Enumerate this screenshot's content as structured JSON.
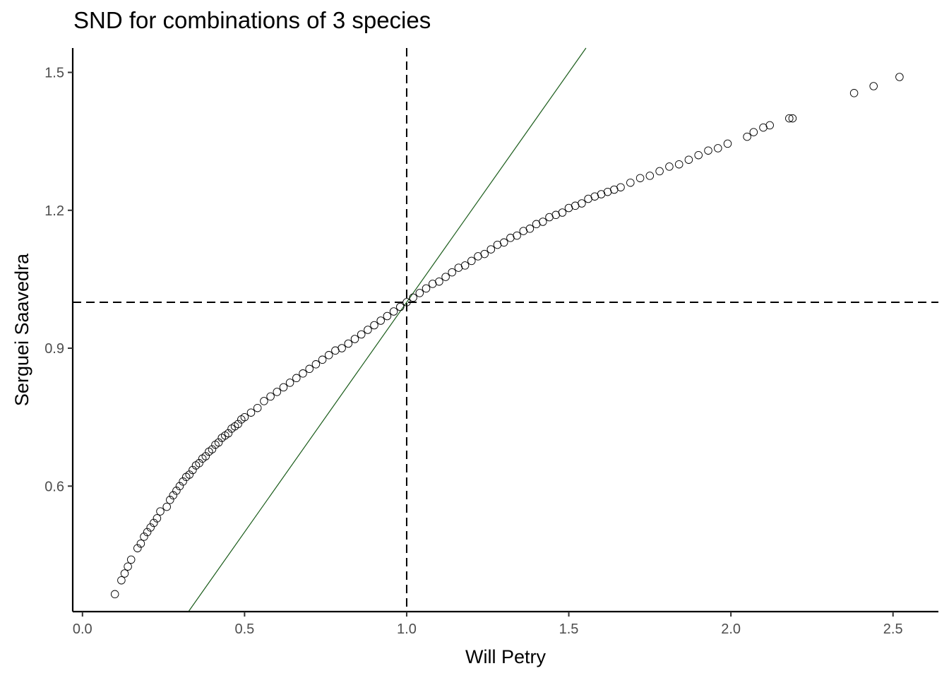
{
  "chart_data": {
    "type": "scatter",
    "title": "SND for combinations of 3 species",
    "xlabel": "Will Petry",
    "ylabel": "Serguei Saavedra",
    "xlim": [
      -0.03,
      2.64
    ],
    "ylim": [
      0.327,
      1.553
    ],
    "xticks": [
      0.0,
      0.5,
      1.0,
      1.5,
      2.0,
      2.5
    ],
    "xtick_labels": [
      "0.0",
      "0.5",
      "1.0",
      "1.5",
      "2.0",
      "2.5"
    ],
    "yticks": [
      0.6,
      0.9,
      1.2,
      1.5
    ],
    "ytick_labels": [
      "0.6",
      "0.9",
      "1.2",
      "1.5"
    ],
    "grid": false,
    "legend": "none",
    "reference_lines": {
      "vertical_x": 1.0,
      "horizontal_y": 1.0,
      "style": "dashed",
      "color": "#000000",
      "identity_line_color": "#1a5c1a",
      "identity_slope": 1,
      "identity_intercept": 0
    },
    "marker": "open-circle",
    "series": [
      {
        "x": [
          0.1,
          0.12,
          0.13,
          0.14,
          0.15,
          0.17,
          0.18,
          0.19,
          0.2,
          0.21,
          0.22,
          0.23,
          0.24,
          0.26,
          0.27,
          0.28,
          0.29,
          0.3,
          0.31,
          0.32,
          0.33,
          0.34,
          0.35,
          0.36,
          0.37,
          0.38,
          0.39,
          0.4,
          0.41,
          0.42,
          0.43,
          0.44,
          0.45,
          0.46,
          0.47,
          0.48,
          0.49,
          0.5,
          0.52,
          0.54,
          0.56,
          0.58,
          0.6,
          0.62,
          0.64,
          0.66,
          0.68,
          0.7,
          0.72,
          0.74,
          0.76,
          0.78,
          0.8,
          0.82,
          0.84,
          0.86,
          0.88,
          0.9,
          0.92,
          0.94,
          0.96,
          0.98,
          1.0,
          1.02,
          1.04,
          1.06,
          1.08,
          1.1,
          1.12,
          1.14,
          1.16,
          1.18,
          1.2,
          1.22,
          1.24,
          1.26,
          1.28,
          1.3,
          1.32,
          1.34,
          1.36,
          1.38,
          1.4,
          1.42,
          1.44,
          1.46,
          1.48,
          1.5,
          1.52,
          1.54,
          1.56,
          1.58,
          1.6,
          1.62,
          1.64,
          1.66,
          1.69,
          1.72,
          1.75,
          1.78,
          1.81,
          1.84,
          1.87,
          1.9,
          1.93,
          1.96,
          1.99,
          2.05,
          2.07,
          2.1,
          2.12,
          2.18,
          2.19,
          2.38,
          2.44,
          2.52
        ],
        "y": [
          0.365,
          0.395,
          0.41,
          0.425,
          0.44,
          0.465,
          0.475,
          0.49,
          0.5,
          0.51,
          0.52,
          0.53,
          0.545,
          0.555,
          0.57,
          0.58,
          0.59,
          0.6,
          0.61,
          0.62,
          0.625,
          0.635,
          0.645,
          0.65,
          0.66,
          0.665,
          0.675,
          0.68,
          0.69,
          0.695,
          0.705,
          0.71,
          0.715,
          0.725,
          0.73,
          0.735,
          0.745,
          0.75,
          0.76,
          0.77,
          0.785,
          0.795,
          0.805,
          0.815,
          0.825,
          0.835,
          0.845,
          0.855,
          0.865,
          0.875,
          0.885,
          0.895,
          0.9,
          0.91,
          0.92,
          0.93,
          0.94,
          0.95,
          0.96,
          0.97,
          0.98,
          0.99,
          1.0,
          1.01,
          1.02,
          1.03,
          1.04,
          1.045,
          1.055,
          1.065,
          1.075,
          1.08,
          1.09,
          1.1,
          1.105,
          1.115,
          1.125,
          1.13,
          1.14,
          1.145,
          1.155,
          1.16,
          1.17,
          1.175,
          1.185,
          1.19,
          1.195,
          1.205,
          1.21,
          1.215,
          1.225,
          1.23,
          1.235,
          1.24,
          1.245,
          1.25,
          1.26,
          1.27,
          1.275,
          1.285,
          1.295,
          1.3,
          1.31,
          1.32,
          1.33,
          1.335,
          1.345,
          1.36,
          1.37,
          1.38,
          1.385,
          1.4,
          1.4,
          1.455,
          1.47,
          1.49
        ]
      }
    ]
  }
}
